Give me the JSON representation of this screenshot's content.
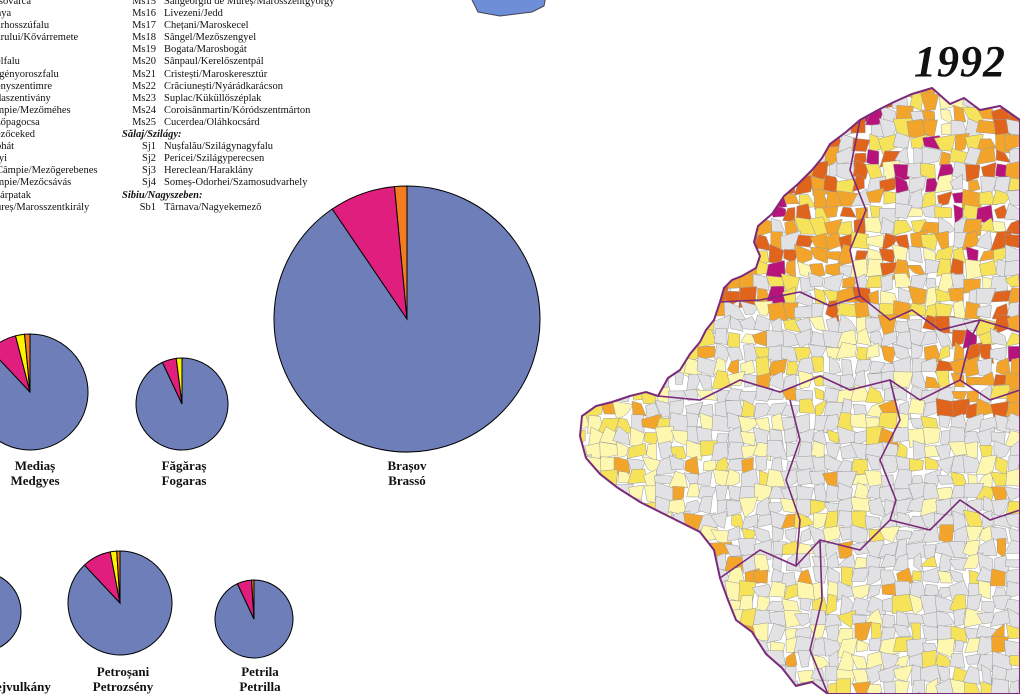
{
  "year": "1992",
  "colors": {
    "romanian": "#6d7eb8",
    "hungarian": "#e01e7d",
    "other_yellow": "#fff200",
    "other_orange": "#f47c20",
    "map_grey": "#e2e2e4",
    "map_light_yellow": "#fdf7b0",
    "map_yellow": "#f7e35a",
    "map_orange": "#f2a52a",
    "map_dark_orange": "#e0641c",
    "map_magenta": "#b7137a",
    "border_purple": "#7a2a7a"
  },
  "legend_left": [
    "lsóvárca",
    "nya",
    "arhosszúfalu",
    "arului/Kővárremete",
    "",
    "elfalu",
    "rgényoroszfalu",
    "enyszentimre",
    "daszentivány",
    "mpie/Mezőméhes",
    "zőpagocsa",
    "ezőceked",
    "óhát",
    "lyi",
    " Câmpie/Mezőgerebenes",
    "mpie/Mezőcsávás",
    "sárpatak",
    "ureș/Marosszentkirály"
  ],
  "legend_right": [
    {
      "code": "Ms15",
      "name": "Sângeorgiu de Mureș/Marosszentgyörgy"
    },
    {
      "code": "Ms16",
      "name": "Livezeni/Jedd"
    },
    {
      "code": "Ms17",
      "name": "Chețani/Maroskecel"
    },
    {
      "code": "Ms18",
      "name": "Sângel/Mezőszengyel"
    },
    {
      "code": "Ms19",
      "name": "Bogata/Marosbogát"
    },
    {
      "code": "Ms20",
      "name": "Sânpaul/Kerelőszentpál"
    },
    {
      "code": "Ms21",
      "name": "Cristești/Maroskeresztúr"
    },
    {
      "code": "Ms22",
      "name": "Crăciunești/Nyárádkarácson"
    },
    {
      "code": "Ms23",
      "name": "Suplac/Küküllőszéplak"
    },
    {
      "code": "Ms24",
      "name": "Coroisânmartin/Kóródszentmárton"
    },
    {
      "code": "Ms25",
      "name": "Cucerdea/Oláhkocsárd"
    },
    {
      "county": "Sălaj/Szilágy:"
    },
    {
      "code": "Sj1",
      "name": "Nușfalău/Szilágynagyfalu"
    },
    {
      "code": "Sj2",
      "name": "Pericei/Szilágyperecsen"
    },
    {
      "code": "Sj3",
      "name": "Hereclean/Haraklány"
    },
    {
      "code": "Sj4",
      "name": "Someș-Odorhei/Szamosudvarhely"
    },
    {
      "county": "Sibiu/Nagyszeben:"
    },
    {
      "code": "Sb1",
      "name": "Târnava/Nagyekemező"
    }
  ],
  "pies": [
    {
      "id": "medias",
      "label1": "Mediaș",
      "label2": "Medgyes",
      "shares": [
        0.88,
        0.08,
        0.025,
        0.015
      ]
    },
    {
      "id": "fagaras",
      "label1": "Făgăraș",
      "label2": "Fogaras",
      "shares": [
        0.93,
        0.05,
        0.02,
        0.0
      ]
    },
    {
      "id": "brasov",
      "label1": "Brașov",
      "label2": "Brassó",
      "shares": [
        0.905,
        0.08,
        0.0,
        0.015
      ]
    },
    {
      "id": "vulcan",
      "label1": "",
      "label2": "ejvulkány",
      "shares": [
        1.0,
        0.0,
        0.0,
        0.0
      ]
    },
    {
      "id": "petrosani",
      "label1": "Petroșani",
      "label2": "Petrozsény",
      "shares": [
        0.88,
        0.09,
        0.02,
        0.01
      ]
    },
    {
      "id": "petrila",
      "label1": "Petrila",
      "label2": "Petrilla",
      "shares": [
        0.93,
        0.06,
        0.0,
        0.01
      ]
    }
  ]
}
